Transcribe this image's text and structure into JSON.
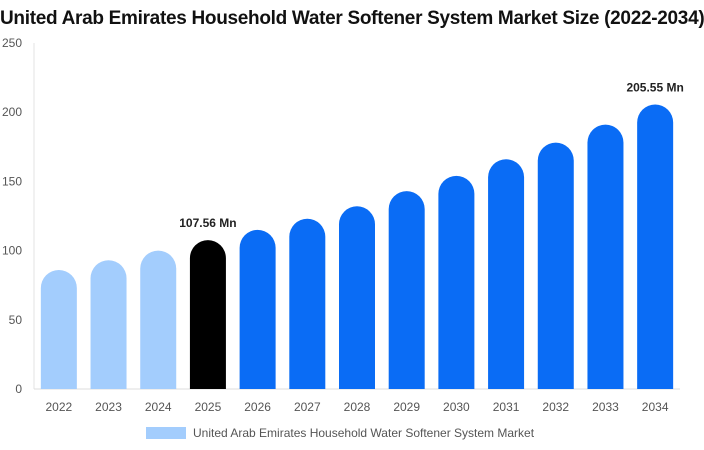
{
  "chart_data": {
    "type": "bar",
    "title": "United Arab Emirates Household Water Softener System Market Size (2022-2034)",
    "xlabel": "",
    "ylabel": "",
    "categories": [
      "2022",
      "2023",
      "2024",
      "2025",
      "2026",
      "2027",
      "2028",
      "2029",
      "2030",
      "2031",
      "2032",
      "2033",
      "2034"
    ],
    "series": [
      {
        "name": "United Arab Emirates Household Water Softener System Market",
        "values": [
          86,
          93,
          100,
          107.56,
          115,
          123,
          132,
          143,
          154,
          166,
          178,
          191,
          205.55
        ]
      }
    ],
    "ylim": [
      0,
      250
    ],
    "yticks": [
      0,
      50,
      100,
      150,
      200,
      250
    ],
    "data_labels": [
      {
        "category": "2025",
        "text": "107.56 Mn"
      },
      {
        "category": "2034",
        "text": "205.55 Mn"
      }
    ],
    "colors": {
      "historical": "#a3cdfd",
      "current": "#000000",
      "forecast": "#0a6cf5"
    },
    "historical_categories": [
      "2022",
      "2023",
      "2024"
    ],
    "current_category": "2025",
    "grid": false,
    "legend_position": "bottom-center"
  }
}
